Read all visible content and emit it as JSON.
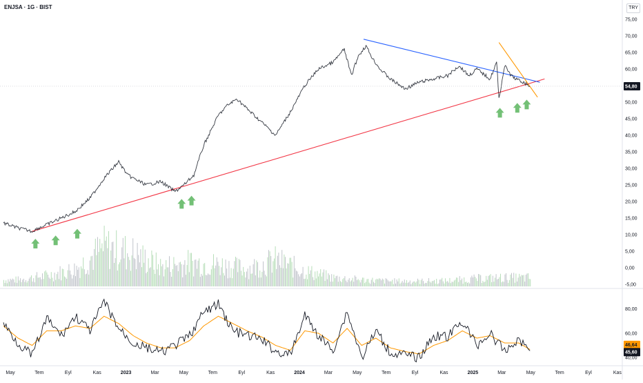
{
  "header": {
    "symbol_title": "ENJSA · 1G · BIST",
    "currency": "TRY"
  },
  "chart_data": [
    {
      "type": "line",
      "title": "ENJSA · 1G · BIST",
      "xlabel": "",
      "ylabel": "",
      "x_tick_labels": [
        "May",
        "Tem",
        "Eyl",
        "Kas",
        "2023",
        "Mar",
        "May",
        "Tem",
        "Eyl",
        "Kas",
        "2024",
        "Mar",
        "May",
        "Tem",
        "Eyl",
        "Kas",
        "2025",
        "Mar",
        "May",
        "Tem",
        "Eyl",
        "Kas"
      ],
      "x_range": [
        "2022-05-01",
        "2025-11-30"
      ],
      "y_axis": {
        "ticks": [
          "75,00",
          "70,00",
          "65,00",
          "60,00",
          "55,00",
          "50,00",
          "45,00",
          "40,00",
          "35,00",
          "30,00",
          "25,00",
          "20,00",
          "15,00",
          "10,00",
          "5,00",
          "0,00",
          "-5,00"
        ],
        "range": [
          -5,
          75
        ]
      },
      "last_price_label": "54,80",
      "price_series": {
        "name": "",
        "x": [
          "2022-05-01",
          "2022-06-01",
          "2022-07-01",
          "2022-07-15",
          "2022-08-01",
          "2022-09-01",
          "2022-10-01",
          "2022-11-01",
          "2022-12-01",
          "2023-01-01",
          "2023-01-20",
          "2023-02-01",
          "2023-03-01",
          "2023-04-01",
          "2023-05-01",
          "2023-05-20",
          "2023-06-10",
          "2023-07-01",
          "2023-08-01",
          "2023-08-20",
          "2023-09-10",
          "2023-10-01",
          "2023-11-01",
          "2023-12-01",
          "2024-01-01",
          "2024-02-01",
          "2024-03-01",
          "2024-04-01",
          "2024-04-25",
          "2024-05-10",
          "2024-05-25",
          "2024-06-10",
          "2024-06-25",
          "2024-07-10",
          "2024-08-01",
          "2024-09-01",
          "2024-10-01",
          "2024-11-01",
          "2024-12-01",
          "2024-12-25",
          "2025-01-15",
          "2025-02-01",
          "2025-03-01",
          "2025-03-15",
          "2025-03-20",
          "2025-04-01",
          "2025-04-15",
          "2025-04-25",
          "2025-05-10",
          "2025-05-25"
        ],
        "y": [
          13.5,
          12,
          11,
          12,
          13,
          15,
          17,
          21,
          27,
          32,
          28,
          27,
          25,
          26,
          23,
          25,
          28,
          37,
          46,
          49,
          51,
          48,
          44,
          40,
          47,
          55,
          60,
          62,
          66,
          58,
          64,
          67,
          63,
          60,
          57,
          54,
          56,
          57,
          58,
          61,
          58,
          60,
          57,
          62,
          51,
          61,
          58,
          57,
          56,
          54.8
        ]
      },
      "support_line": {
        "name": "",
        "x": [
          "2022-07-01",
          "2025-06-25"
        ],
        "y": [
          11,
          57
        ]
      },
      "resistance_line": {
        "name": "",
        "x": [
          "2024-06-05",
          "2025-06-15"
        ],
        "y": [
          69,
          56
        ]
      },
      "wedge_line": {
        "name": "",
        "x": [
          "2025-03-20",
          "2025-06-10"
        ],
        "y": [
          68,
          51.5
        ]
      },
      "buy_arrows": {
        "name": "",
        "x": [
          "2022-07-08",
          "2022-08-20",
          "2022-10-05",
          "2023-05-15",
          "2023-06-05",
          "2025-03-22",
          "2025-04-28",
          "2025-05-18"
        ],
        "y": [
          10,
          11,
          13,
          22,
          23,
          49.5,
          51,
          52
        ]
      },
      "volume": {
        "name": "",
        "note": "bar heights read as relative level 0-1 of volume pane",
        "x": [
          "2022-06-01",
          "2022-08-01",
          "2022-10-01",
          "2022-12-01",
          "2023-02-01",
          "2023-04-01",
          "2023-06-01",
          "2023-08-01",
          "2023-10-01",
          "2023-12-01",
          "2024-02-01",
          "2024-04-01",
          "2024-06-01",
          "2024-08-01",
          "2024-10-01",
          "2024-12-01",
          "2025-02-01",
          "2025-04-01"
        ],
        "values": [
          0.15,
          0.25,
          0.4,
          0.9,
          0.75,
          0.45,
          0.55,
          0.5,
          0.4,
          0.6,
          0.35,
          0.2,
          0.15,
          0.12,
          0.12,
          0.13,
          0.18,
          0.2
        ]
      }
    },
    {
      "type": "line",
      "title": "",
      "xlabel": "",
      "ylabel": "",
      "y_axis": {
        "ticks": [
          "80,00",
          "60,00",
          "40,00"
        ],
        "range": [
          35,
          90
        ]
      },
      "value_labels": [
        "46,64",
        "45,60"
      ],
      "series": [
        {
          "name": "",
          "x": [
            "2022-05-01",
            "2022-06-01",
            "2022-07-01",
            "2022-08-01",
            "2022-09-01",
            "2022-10-01",
            "2022-11-01",
            "2022-12-01",
            "2023-01-01",
            "2023-02-01",
            "2023-03-01",
            "2023-04-01",
            "2023-05-01",
            "2023-06-01",
            "2023-07-01",
            "2023-08-01",
            "2023-09-01",
            "2023-10-01",
            "2023-11-01",
            "2023-12-01",
            "2024-01-01",
            "2024-02-01",
            "2024-03-01",
            "2024-04-01",
            "2024-05-01",
            "2024-06-01",
            "2024-07-01",
            "2024-08-01",
            "2024-09-01",
            "2024-10-01",
            "2024-11-01",
            "2024-12-01",
            "2025-01-01",
            "2025-02-01",
            "2025-03-01",
            "2025-04-01",
            "2025-05-01",
            "2025-05-25"
          ],
          "y": [
            68,
            52,
            42,
            72,
            58,
            74,
            62,
            86,
            64,
            52,
            48,
            44,
            50,
            58,
            77,
            84,
            62,
            58,
            55,
            45,
            42,
            75,
            58,
            46,
            78,
            40,
            62,
            44,
            42,
            40,
            58,
            57,
            70,
            50,
            60,
            45,
            55,
            45.6
          ]
        },
        {
          "name": "",
          "x": [
            "2022-05-01",
            "2022-06-01",
            "2022-07-01",
            "2022-08-01",
            "2022-09-01",
            "2022-10-01",
            "2022-11-01",
            "2022-12-01",
            "2023-01-01",
            "2023-02-01",
            "2023-03-01",
            "2023-04-01",
            "2023-05-01",
            "2023-06-01",
            "2023-07-01",
            "2023-08-01",
            "2023-09-01",
            "2023-10-01",
            "2023-11-01",
            "2023-12-01",
            "2024-01-01",
            "2024-02-01",
            "2024-03-01",
            "2024-04-01",
            "2024-05-01",
            "2024-06-01",
            "2024-07-01",
            "2024-08-01",
            "2024-09-01",
            "2024-10-01",
            "2024-11-01",
            "2024-12-01",
            "2025-01-01",
            "2025-02-01",
            "2025-03-01",
            "2025-04-01",
            "2025-05-01",
            "2025-05-25"
          ],
          "y": [
            66,
            56,
            50,
            62,
            62,
            66,
            64,
            74,
            68,
            58,
            52,
            48,
            48,
            54,
            66,
            74,
            68,
            62,
            57,
            50,
            46,
            62,
            60,
            52,
            64,
            50,
            56,
            48,
            45,
            43,
            50,
            54,
            62,
            56,
            58,
            52,
            52,
            46.64
          ]
        }
      ]
    }
  ],
  "colors": {
    "price": "#131722",
    "support": "#f23645",
    "resistance": "#2962ff",
    "wedge": "#ff9800",
    "arrow": "#5ab55e",
    "volume": "#a5d6a7",
    "volume_alt": "#b2b5be",
    "osc_main": "#131722",
    "osc_signal": "#ff9800",
    "axis_text": "#131722",
    "pane_border": "#e0e3eb",
    "label_dark_bg": "#131722",
    "label_orange_bg": "#ff9800"
  }
}
